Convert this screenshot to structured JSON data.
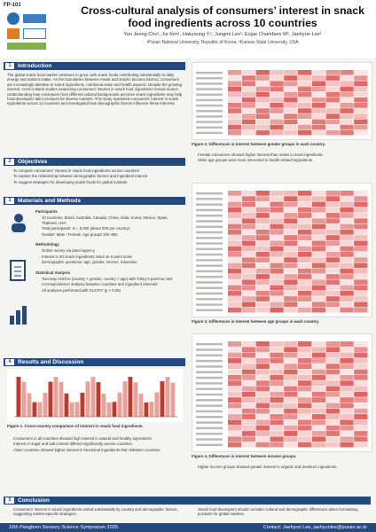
{
  "header": {
    "code": "FP-101",
    "title": "Cross-cultural analysis of consumers’ interest in snack food ingredients across 10 countries",
    "authors": "Yun Jeong Cho¹, Jie Kim¹, Hakyoung Y.¹, Jungmi Lee¹, Eojae Chambers M², Jaehyun Lee¹",
    "affiliations": "¹Pusan National University, Republic of Korea, ²Kansas State University, USA"
  },
  "sections": {
    "intro": {
      "num": "1",
      "label": "Introduction"
    },
    "objectives": {
      "num": "2",
      "label": "Objectives"
    },
    "methods": {
      "num": "3",
      "label": "Materials and Methods"
    },
    "results": {
      "num": "4",
      "label": "Results and Discussion"
    },
    "conclusion": {
      "num": "5",
      "label": "Conclusion"
    }
  },
  "intro_text": "The global snack food market continues to grow, with snack foods contributing substantially to daily energy and nutrient intake. As the boundaries between meals and snacks become blurred, consumers are increasingly attentive to snack ingredients, nutritional value and health aspects. Despite the growing interest, cross-cultural studies examining consumers’ interest in snack food ingredients remain scarce. Understanding how consumers from different cultural backgrounds perceive snack ingredients may help food developers tailor products for diverse markets. This study examined consumers’ interest in snack ingredients across 10 countries and investigated how demographic factors influence these interests.",
  "objectives": [
    "To compare consumers’ interest in snack food ingredients across countries",
    "To explore the relationship between demographic factors and ingredient interest",
    "To suggest strategies for developing snack foods for global markets"
  ],
  "methods": {
    "participants_title": "Participants",
    "participants": [
      "10 countries: Brazil, Australia, Canada, China, India, Korea, Mexico, Spain, Thailand, USA",
      "Total participants: N = 5,000 (about 500 per country)",
      "Gender: Male / Female; Age groups 20s–60s"
    ],
    "methodology_title": "Methodology",
    "methodology": [
      "Online survey via panel agency",
      "Interest in 30 snack ingredients rated on 5-point scale",
      "Demographic questions: age, gender, income, education"
    ],
    "stats_title": "Statistical Analysis",
    "stats": [
      "Two-way ANOVA (country × gender, country × age) with Tukey’s post-hoc test",
      "Correspondence analysis between countries and ingredient interests",
      "All analyses performed with XLSTAT (p < 0.05)"
    ]
  },
  "results": {
    "fig1_caption": "Figure 1. Cross-country comparison of interest in snack food ingredients.",
    "fig2_caption": "Figure 2. Differences in interest between gender groups in each country.",
    "fig3_caption": "Figure 3. Differences in interest between age groups in each country.",
    "fig4_caption": "Figure 4. Differences in interest between income groups.",
    "bullets_left": [
      "Consumers in all countries showed high interest in natural and healthy ingredients.",
      "Interest in sugar and salt content differed significantly across countries.",
      "Asian countries showed higher interest in functional ingredients than Western countries."
    ],
    "bullets_right": [
      "Female consumers showed higher interest than males in most ingredients.",
      "Older age groups were more interested in health-related ingredients.",
      "Higher income groups showed greater interest in organic and premium ingredients."
    ]
  },
  "conclusion": {
    "left": "Consumers’ interest in snack ingredients varied substantially by country and demographic factors, suggesting market-specific strategies.",
    "right": "Snack food developers should consider cultural and demographic differences when formulating products for global markets."
  },
  "footer": {
    "left": "16th Pangborn Sensory Science Symposium 2025",
    "right": "Contact: Jaehyun Lee, jaehyunlee@pusan.ac.kr"
  },
  "colors": {
    "navy": "#23497d",
    "heat_high": "#d9534f",
    "heat_low": "#fbe3df",
    "bar": "#c0392b"
  }
}
